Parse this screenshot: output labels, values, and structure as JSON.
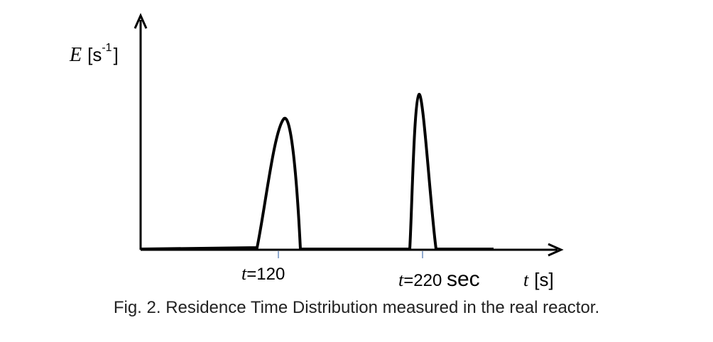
{
  "chart_data": {
    "type": "line",
    "title": "",
    "xlabel": {
      "var": "t",
      "unit": "[s]"
    },
    "ylabel": {
      "var": "E",
      "unit_base": "[s",
      "unit_exp": "-1",
      "unit_close": "]"
    },
    "peaks": [
      {
        "center": 120,
        "label_var": "t",
        "label_value": "=120",
        "label_suffix": ""
      },
      {
        "center": 220,
        "label_var": "t",
        "label_value": "=220 ",
        "label_suffix": "sec"
      }
    ]
  },
  "caption": "Fig. 2.  Residence Time Distribution measured in the real reactor."
}
